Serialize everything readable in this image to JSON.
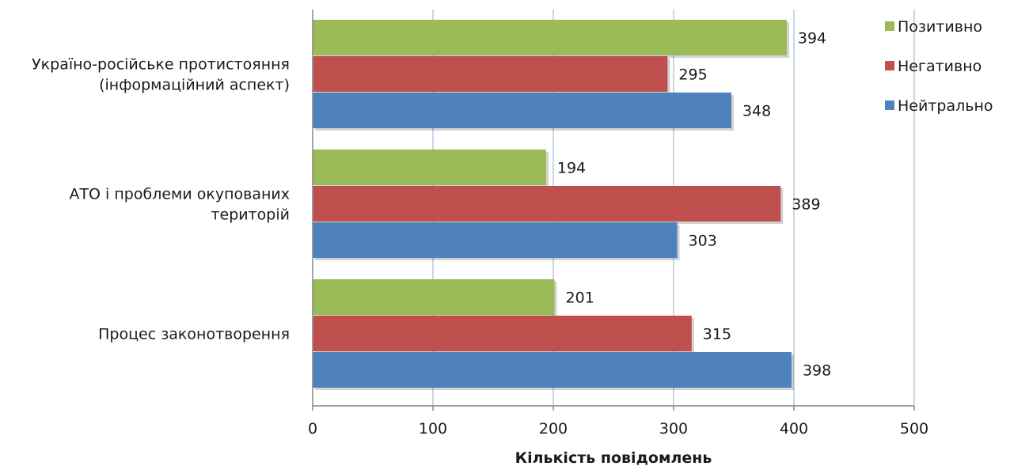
{
  "chart_data": {
    "type": "bar",
    "orientation": "horizontal",
    "categories": [
      [
        "Україно-російське протистояння",
        "(інформаційний аспект)"
      ],
      [
        "АТО і проблеми окупованих",
        "територій"
      ],
      [
        "Процес законотворення"
      ]
    ],
    "series": [
      {
        "name": "Позитивно",
        "color": "#9bbb59",
        "values": [
          394,
          194,
          201
        ]
      },
      {
        "name": "Негативно",
        "color": "#c0504d",
        "values": [
          295,
          389,
          315
        ]
      },
      {
        "name": "Нейтрально",
        "color": "#4f81bd",
        "values": [
          348,
          303,
          398
        ]
      }
    ],
    "xlabel": "Кількість повідомлень",
    "ylabel": "",
    "xlim": [
      0,
      500
    ],
    "xticks": [
      0,
      100,
      200,
      300,
      400,
      500
    ],
    "grid": true,
    "data_labels": true,
    "legend_position": "top-right"
  }
}
